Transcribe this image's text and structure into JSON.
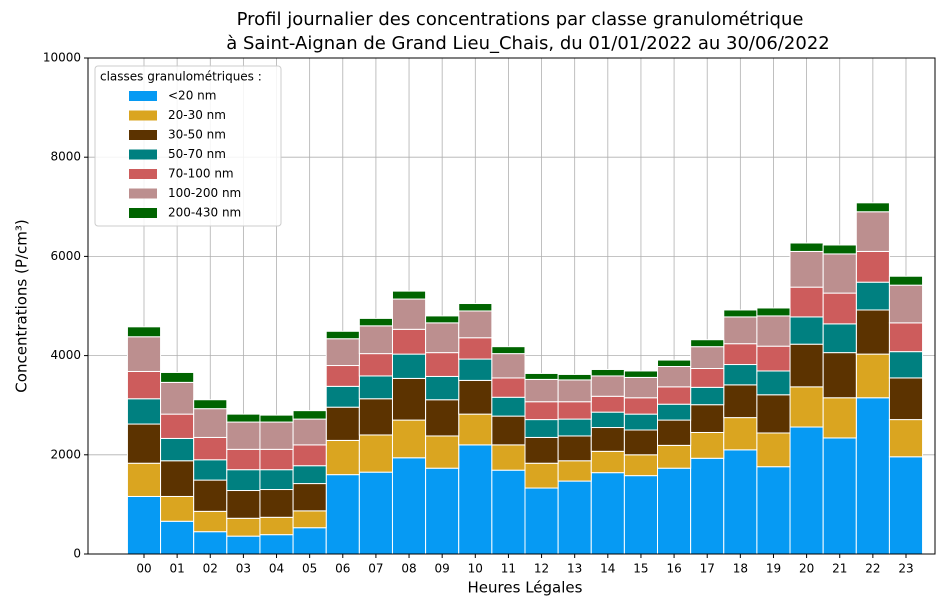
{
  "chart_data": {
    "type": "stacked_bar",
    "title": [
      "Profil journalier des concentrations par classe granulométrique",
      "à Saint-Aignan de Grand Lieu_Chais, du 01/01/2022 au 30/06/2022"
    ],
    "xlabel": "Heures Légales",
    "ylabel": "Concentrations (P/cm³)",
    "legend_title": "classes granulométriques :",
    "legend_loc": "upper left",
    "grid": true,
    "ylim": [
      0,
      10000
    ],
    "yticks": [
      0,
      2000,
      4000,
      6000,
      8000,
      10000
    ],
    "categories": [
      "00",
      "01",
      "02",
      "03",
      "04",
      "05",
      "06",
      "07",
      "08",
      "09",
      "10",
      "11",
      "12",
      "13",
      "14",
      "15",
      "16",
      "17",
      "18",
      "19",
      "20",
      "21",
      "22",
      "23"
    ],
    "series": [
      {
        "name": "<20 nm",
        "color": "#069af3",
        "values": [
          1160,
          660,
          450,
          360,
          390,
          530,
          1600,
          1650,
          1940,
          1730,
          2200,
          1690,
          1330,
          1470,
          1640,
          1580,
          1730,
          1930,
          2100,
          1760,
          2560,
          2340,
          3150,
          1960
        ]
      },
      {
        "name": "20-30 nm",
        "color": "#daa520",
        "values": [
          670,
          500,
          410,
          360,
          350,
          340,
          690,
          750,
          760,
          650,
          620,
          510,
          500,
          410,
          430,
          420,
          460,
          520,
          650,
          680,
          810,
          810,
          880,
          750
        ]
      },
      {
        "name": "30-50 nm",
        "color": "#5c3300",
        "values": [
          790,
          720,
          630,
          560,
          560,
          550,
          670,
          730,
          840,
          730,
          680,
          580,
          520,
          500,
          480,
          500,
          510,
          560,
          660,
          770,
          860,
          910,
          890,
          840
        ]
      },
      {
        "name": "50-70 nm",
        "color": "#008080",
        "values": [
          510,
          450,
          410,
          420,
          400,
          360,
          420,
          460,
          490,
          470,
          430,
          380,
          360,
          340,
          310,
          320,
          320,
          350,
          410,
          480,
          550,
          580,
          560,
          530
        ]
      },
      {
        "name": "70-100 nm",
        "color": "#cd5c5c",
        "values": [
          550,
          490,
          450,
          410,
          410,
          420,
          420,
          450,
          500,
          480,
          430,
          390,
          360,
          350,
          320,
          330,
          350,
          380,
          420,
          500,
          600,
          620,
          620,
          580
        ]
      },
      {
        "name": "100-200 nm",
        "color": "#bc8f8f",
        "values": [
          700,
          640,
          580,
          550,
          550,
          520,
          540,
          560,
          610,
          600,
          540,
          490,
          450,
          440,
          410,
          410,
          410,
          440,
          540,
          610,
          720,
          790,
          800,
          760
        ]
      },
      {
        "name": "200-430 nm",
        "color": "#006400",
        "values": [
          200,
          200,
          180,
          160,
          140,
          170,
          150,
          150,
          160,
          140,
          150,
          140,
          120,
          110,
          130,
          130,
          130,
          140,
          140,
          160,
          170,
          180,
          180,
          180
        ]
      }
    ]
  }
}
